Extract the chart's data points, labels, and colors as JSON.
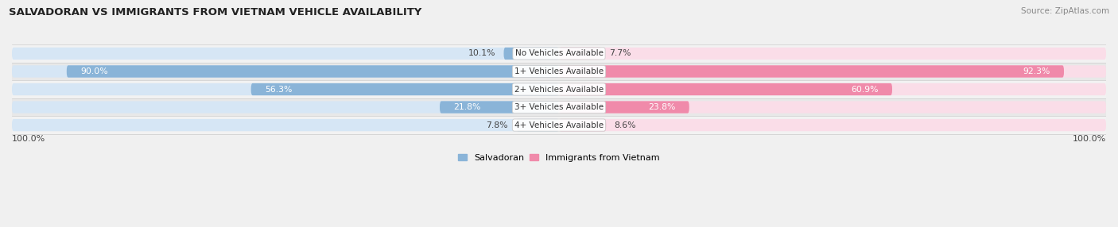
{
  "title": "SALVADORAN VS IMMIGRANTS FROM VIETNAM VEHICLE AVAILABILITY",
  "source": "Source: ZipAtlas.com",
  "categories": [
    "No Vehicles Available",
    "1+ Vehicles Available",
    "2+ Vehicles Available",
    "3+ Vehicles Available",
    "4+ Vehicles Available"
  ],
  "salvadoran_values": [
    10.1,
    90.0,
    56.3,
    21.8,
    7.8
  ],
  "vietnam_values": [
    7.7,
    92.3,
    60.9,
    23.8,
    8.6
  ],
  "salvadoran_color": "#8ab4d8",
  "vietnam_color": "#f08aaa",
  "salvadoran_bg_color": "#d6e6f5",
  "vietnam_bg_color": "#fadde8",
  "row_odd_color": "#f2f2f2",
  "row_even_color": "#e8e8e8",
  "label_fontsize": 7.8,
  "title_fontsize": 10,
  "max_value": 100.0,
  "legend_salvadoran": "Salvadoran",
  "legend_vietnam": "Immigrants from Vietnam",
  "axis_label_left": "100.0%",
  "axis_label_right": "100.0%",
  "inside_label_threshold": 18
}
